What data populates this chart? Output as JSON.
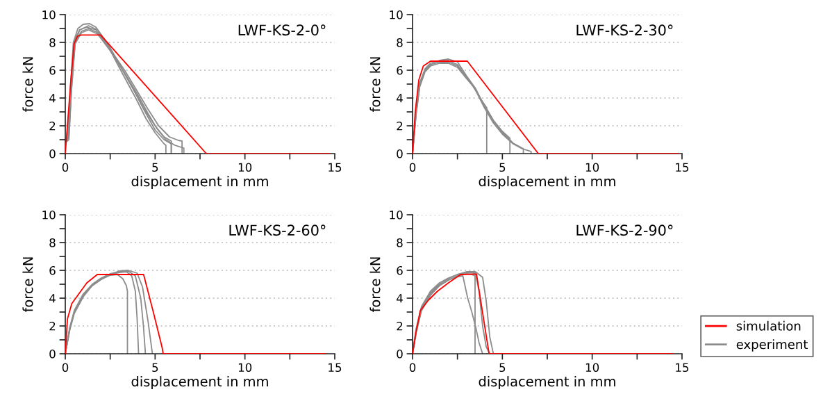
{
  "chart_data": [
    {
      "type": "line",
      "title": "LWF-KS-2-0°",
      "xlabel": "displacement in mm",
      "ylabel": "force kN",
      "xlim": [
        0,
        15
      ],
      "ylim": [
        0,
        10
      ],
      "xticks": [
        0,
        {
          "value": 2.5,
          "label": null
        },
        5,
        {
          "value": 7.5,
          "label": null
        },
        10,
        {
          "value": 12.5,
          "label": null
        },
        15
      ],
      "yticks": [
        0,
        {
          "value": 1,
          "label": null
        },
        2,
        {
          "value": 3,
          "label": null
        },
        4,
        {
          "value": 5,
          "label": null
        },
        6,
        {
          "value": 7,
          "label": null
        },
        8,
        {
          "value": 9,
          "label": null
        },
        10
      ],
      "grid": "y",
      "legend": false,
      "series": [
        {
          "color": "#8c8c8c",
          "x": [
            0,
            0.15,
            0.3,
            0.45,
            0.7,
            1.0,
            1.35,
            1.7,
            2.2,
            3.0,
            3.5,
            4.0,
            4.5,
            5.0,
            5.5,
            5.6,
            5.6
          ],
          "values": [
            0.9,
            1.2,
            5.0,
            8.0,
            9.0,
            9.3,
            9.35,
            9.1,
            8.2,
            6.2,
            5.0,
            3.8,
            2.5,
            1.5,
            0.7,
            0.6,
            0
          ]
        },
        {
          "color": "#8c8c8c",
          "x": [
            0,
            0.15,
            0.3,
            0.5,
            0.8,
            1.3,
            1.8,
            2.5,
            3.2,
            3.8,
            4.4,
            5.0,
            5.5,
            5.9,
            5.9
          ],
          "values": [
            0.9,
            1.1,
            4.5,
            7.8,
            8.9,
            9.2,
            8.9,
            7.6,
            6.0,
            4.6,
            3.1,
            1.7,
            1.0,
            0.7,
            0
          ]
        },
        {
          "color": "#8c8c8c",
          "x": [
            0,
            0.2,
            0.35,
            0.55,
            0.9,
            1.3,
            1.8,
            2.5,
            3.3,
            4.0,
            4.6,
            5.2,
            5.8,
            6.3,
            6.5,
            6.5
          ],
          "values": [
            0.8,
            1.0,
            4.8,
            8.0,
            8.8,
            9.0,
            8.7,
            7.5,
            6.0,
            4.5,
            3.2,
            2.0,
            1.2,
            0.95,
            0.9,
            0
          ]
        },
        {
          "color": "#8c8c8c",
          "x": [
            0,
            0.2,
            0.35,
            0.55,
            0.9,
            1.3,
            1.8,
            2.5,
            3.3,
            4.0,
            4.6,
            5.1,
            5.6,
            6.1,
            6.6,
            6.6
          ],
          "values": [
            1.0,
            1.2,
            4.6,
            7.9,
            8.7,
            8.9,
            8.6,
            7.4,
            5.8,
            4.3,
            2.9,
            1.8,
            1.0,
            0.6,
            0.4,
            0
          ]
        },
        {
          "color": "#8c8c8c",
          "x": [
            0,
            0.15,
            0.3,
            0.5,
            0.8,
            1.2,
            1.7,
            2.4,
            3.1,
            3.8,
            4.4,
            5.0,
            5.5,
            5.9,
            5.9
          ],
          "values": [
            0.9,
            1.1,
            4.9,
            8.1,
            8.9,
            9.1,
            8.9,
            7.8,
            6.2,
            4.6,
            3.2,
            2.0,
            1.2,
            0.9,
            0
          ]
        },
        {
          "color": "#ff0000",
          "x": [
            0,
            0.3,
            0.49,
            0.68,
            0.88,
            1.97,
            7.85,
            14.7
          ],
          "values": [
            0,
            5.08,
            7.9,
            8.45,
            8.53,
            8.53,
            0,
            0
          ]
        }
      ]
    },
    {
      "type": "line",
      "title": "LWF-KS-2-30°",
      "xlabel": "displacement in mm",
      "ylabel": "force kN",
      "xlim": [
        0,
        15
      ],
      "ylim": [
        0,
        10
      ],
      "xticks": [
        0,
        {
          "value": 2.5,
          "label": null
        },
        5,
        {
          "value": 7.5,
          "label": null
        },
        10,
        {
          "value": 12.5,
          "label": null
        },
        15
      ],
      "yticks": [
        0,
        {
          "value": 1,
          "label": null
        },
        2,
        {
          "value": 3,
          "label": null
        },
        4,
        {
          "value": 5,
          "label": null
        },
        6,
        {
          "value": 7,
          "label": null
        },
        8,
        {
          "value": 9,
          "label": null
        },
        10
      ],
      "grid": "y",
      "legend": false,
      "series": [
        {
          "color": "#8c8c8c",
          "x": [
            0,
            0.2,
            0.4,
            0.7,
            1.0,
            1.5,
            2.0,
            2.5,
            3.0,
            3.4,
            3.8,
            4.13,
            4.13
          ],
          "values": [
            0,
            3.0,
            5.0,
            6.0,
            6.4,
            6.6,
            6.6,
            6.3,
            5.5,
            4.8,
            3.9,
            3.3,
            0
          ]
        },
        {
          "color": "#8c8c8c",
          "x": [
            0,
            0.2,
            0.4,
            0.7,
            1.0,
            1.5,
            2.0,
            2.5,
            3.0,
            3.4,
            4.0,
            4.5,
            5.0,
            5.42,
            5.42
          ],
          "values": [
            0,
            2.8,
            4.8,
            5.9,
            6.3,
            6.5,
            6.5,
            6.2,
            5.4,
            4.8,
            3.5,
            2.4,
            1.6,
            1.1,
            0
          ]
        },
        {
          "color": "#8c8c8c",
          "x": [
            0,
            0.2,
            0.4,
            0.7,
            1.0,
            1.5,
            2.0,
            2.5,
            3.0,
            3.5,
            4.0,
            4.5,
            5.0,
            5.6,
            6.17,
            6.17
          ],
          "values": [
            0,
            3.1,
            5.1,
            6.1,
            6.5,
            6.7,
            6.8,
            6.6,
            5.6,
            4.7,
            3.4,
            2.3,
            1.5,
            0.75,
            0.35,
            0
          ]
        },
        {
          "color": "#8c8c8c",
          "x": [
            0,
            0.2,
            0.4,
            0.7,
            1.0,
            1.5,
            2.0,
            2.5,
            3.0,
            3.5,
            4.0,
            4.5,
            5.0,
            5.6,
            6.1,
            6.6,
            6.6
          ],
          "values": [
            0,
            2.9,
            4.9,
            6.0,
            6.4,
            6.6,
            6.7,
            6.4,
            5.5,
            4.6,
            3.3,
            2.2,
            1.4,
            0.7,
            0.35,
            0.15,
            0
          ]
        },
        {
          "color": "#ff0000",
          "x": [
            0,
            0.15,
            0.35,
            0.6,
            1.0,
            3.05,
            7.0,
            14.8
          ],
          "values": [
            0,
            3.0,
            5.3,
            6.3,
            6.65,
            6.65,
            0,
            0
          ]
        }
      ]
    },
    {
      "type": "line",
      "title": "LWF-KS-2-60°",
      "xlabel": "displacement in mm",
      "ylabel": "force kN",
      "xlim": [
        0,
        15
      ],
      "ylim": [
        0,
        10
      ],
      "xticks": [
        0,
        {
          "value": 2.5,
          "label": null
        },
        5,
        {
          "value": 7.5,
          "label": null
        },
        10,
        {
          "value": 12.5,
          "label": null
        },
        15
      ],
      "yticks": [
        0,
        {
          "value": 1,
          "label": null
        },
        2,
        {
          "value": 3,
          "label": null
        },
        4,
        {
          "value": 5,
          "label": null
        },
        6,
        {
          "value": 7,
          "label": null
        },
        8,
        {
          "value": 9,
          "label": null
        },
        10
      ],
      "grid": "y",
      "legend": false,
      "series": [
        {
          "color": "#8c8c8c",
          "x": [
            0,
            0.25,
            0.5,
            1.0,
            1.5,
            2.0,
            2.5,
            2.9,
            3.2,
            3.4,
            3.46,
            3.46
          ],
          "values": [
            0,
            1.8,
            3.0,
            4.2,
            4.9,
            5.35,
            5.65,
            5.7,
            5.4,
            4.9,
            4.5,
            0
          ]
        },
        {
          "color": "#8c8c8c",
          "x": [
            0,
            0.25,
            0.5,
            1.0,
            1.5,
            2.0,
            2.5,
            3.0,
            3.4,
            3.7,
            3.9,
            4.0,
            4.08
          ],
          "values": [
            0,
            1.7,
            2.9,
            4.1,
            4.9,
            5.35,
            5.7,
            5.85,
            5.9,
            5.6,
            4.5,
            2.5,
            0
          ]
        },
        {
          "color": "#8c8c8c",
          "x": [
            0,
            0.25,
            0.5,
            1.0,
            1.5,
            2.0,
            2.5,
            3.0,
            3.5,
            3.9,
            4.2,
            4.35,
            4.46
          ],
          "values": [
            0,
            1.9,
            3.1,
            4.3,
            5.0,
            5.45,
            5.75,
            5.9,
            5.95,
            5.6,
            4.0,
            2.0,
            0
          ]
        },
        {
          "color": "#8c8c8c",
          "x": [
            0,
            0.25,
            0.5,
            1.0,
            1.5,
            2.0,
            2.5,
            3.0,
            3.5,
            4.0,
            4.3,
            4.6,
            4.85
          ],
          "values": [
            0,
            1.8,
            3.0,
            4.2,
            4.95,
            5.4,
            5.7,
            5.95,
            6.0,
            5.8,
            4.8,
            2.4,
            0
          ]
        },
        {
          "color": "#ff0000",
          "x": [
            0,
            0.12,
            0.36,
            0.75,
            1.2,
            1.78,
            4.36,
            4.9,
            5.39,
            5.45,
            14.5
          ],
          "values": [
            0,
            2.5,
            3.6,
            4.3,
            5.1,
            5.7,
            5.7,
            3.0,
            0.45,
            0,
            0
          ]
        }
      ]
    },
    {
      "type": "line",
      "title": "LWF-KS-2-90°",
      "xlabel": "displacement in mm",
      "ylabel": "force kN",
      "xlim": [
        0,
        15
      ],
      "ylim": [
        0,
        10
      ],
      "xticks": [
        0,
        {
          "value": 2.5,
          "label": null
        },
        5,
        {
          "value": 7.5,
          "label": null
        },
        10,
        {
          "value": 12.5,
          "label": null
        },
        15
      ],
      "yticks": [
        0,
        {
          "value": 1,
          "label": null
        },
        2,
        {
          "value": 3,
          "label": null
        },
        4,
        {
          "value": 5,
          "label": null
        },
        6,
        {
          "value": 7,
          "label": null
        },
        8,
        {
          "value": 9,
          "label": null
        },
        10
      ],
      "grid": "y",
      "legend": "right",
      "series": [
        {
          "name": "experiment",
          "color": "#8c8c8c",
          "x": [
            0,
            0.2,
            0.5,
            1.0,
            1.5,
            2.0,
            2.5,
            2.8,
            3.07,
            3.3,
            3.52,
            3.7,
            3.9
          ],
          "values": [
            0,
            1.6,
            3.3,
            4.3,
            4.9,
            5.3,
            5.55,
            5.6,
            4.0,
            3.0,
            1.9,
            0.8,
            0
          ]
        },
        {
          "color": "#8c8c8c",
          "x": [
            0,
            0.2,
            0.5,
            1.0,
            1.5,
            2.0,
            2.5,
            3.0,
            3.3,
            3.48,
            3.48
          ],
          "values": [
            0,
            1.5,
            3.1,
            4.2,
            4.9,
            5.3,
            5.6,
            5.75,
            5.7,
            5.6,
            0
          ]
        },
        {
          "color": "#8c8c8c",
          "x": [
            0,
            0.2,
            0.5,
            1.0,
            1.5,
            2.0,
            2.5,
            3.0,
            3.5,
            3.7,
            3.9,
            4.1,
            4.3
          ],
          "values": [
            0,
            1.8,
            3.4,
            4.5,
            5.1,
            5.45,
            5.7,
            5.85,
            5.8,
            4.5,
            2.0,
            0.5,
            0
          ]
        },
        {
          "color": "#8c8c8c",
          "x": [
            0,
            0.2,
            0.5,
            1.0,
            1.5,
            2.0,
            2.5,
            3.0,
            3.5,
            3.9,
            4.1,
            4.3,
            4.5
          ],
          "values": [
            0,
            1.7,
            3.2,
            4.4,
            5.0,
            5.4,
            5.7,
            5.9,
            5.9,
            5.5,
            3.8,
            1.2,
            0
          ]
        },
        {
          "name": "simulation",
          "color": "#ff0000",
          "x": [
            0,
            0.2,
            0.43,
            0.88,
            1.39,
            2.0,
            2.68,
            3.56,
            4.26,
            14.5
          ],
          "values": [
            0,
            1.6,
            3.1,
            3.85,
            4.5,
            5.1,
            5.7,
            5.73,
            0,
            0
          ]
        }
      ]
    }
  ]
}
